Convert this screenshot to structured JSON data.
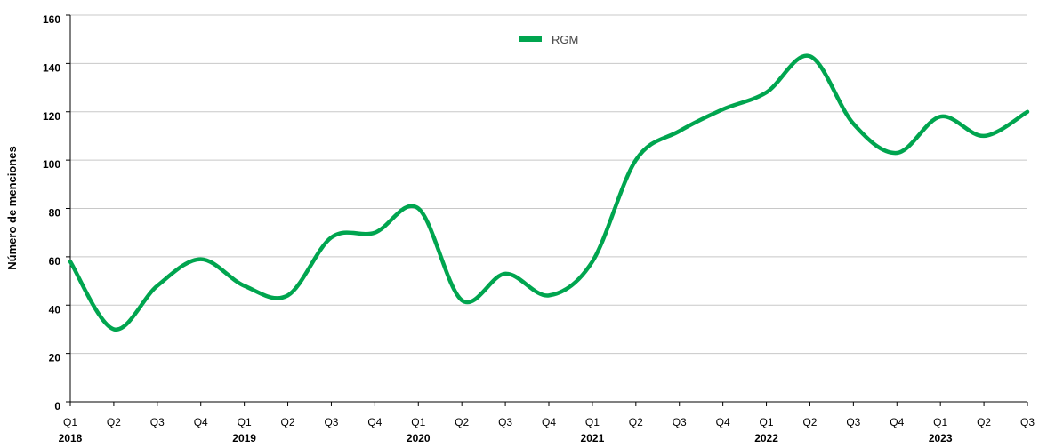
{
  "chart_data": {
    "type": "line",
    "title": "",
    "xlabel": "",
    "ylabel": "Número de menciones",
    "ylim": [
      0,
      160
    ],
    "y_ticks": [
      0,
      20,
      40,
      60,
      80,
      100,
      120,
      140,
      160
    ],
    "grid": true,
    "legend_position": "top-center",
    "categories": [
      "Q1",
      "Q2",
      "Q3",
      "Q4",
      "Q1",
      "Q2",
      "Q3",
      "Q4",
      "Q1",
      "Q2",
      "Q3",
      "Q4",
      "Q1",
      "Q2",
      "Q3",
      "Q4",
      "Q1",
      "Q2",
      "Q3",
      "Q4",
      "Q1",
      "Q2",
      "Q3"
    ],
    "years": [
      {
        "label": "2018",
        "index": 0
      },
      {
        "label": "2019",
        "index": 4
      },
      {
        "label": "2020",
        "index": 8
      },
      {
        "label": "2021",
        "index": 12
      },
      {
        "label": "2022",
        "index": 16
      },
      {
        "label": "2023",
        "index": 20
      }
    ],
    "series": [
      {
        "name": "RGM",
        "color": "#00a54f",
        "values": [
          58,
          30,
          48,
          59,
          48,
          44,
          68,
          70,
          80,
          42,
          53,
          44,
          58,
          100,
          112,
          121,
          128,
          143,
          115,
          103,
          118,
          110,
          120
        ]
      }
    ]
  }
}
